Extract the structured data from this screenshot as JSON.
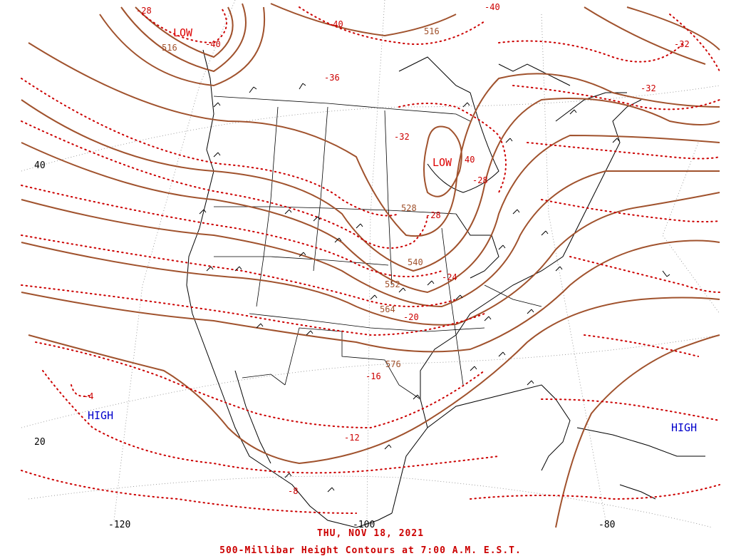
{
  "map": {
    "date": "THU, NOV 18, 2021",
    "title": "500-Millibar Height Contours at 7:00 A.M. E.S.T.",
    "colors": {
      "height_contour": "#a0522d",
      "temperature_contour": "#cc0000",
      "label_low": "#dd0000",
      "label_high": "#0000cc",
      "coast": "#000000",
      "grid": "#777777"
    },
    "pressure_centers": [
      {
        "type": "LOW",
        "color": "#dd0000"
      },
      {
        "type": "LOW",
        "color": "#dd0000"
      },
      {
        "type": "HIGH",
        "color": "#0000cc"
      },
      {
        "type": "HIGH",
        "color": "#0000cc"
      }
    ],
    "height_labels": [
      "516",
      "516",
      "528",
      "540",
      "552",
      "564",
      "576"
    ],
    "temperature_labels": [
      "-28",
      "-40",
      "-40",
      "-40",
      "-36",
      "-32",
      "-32",
      "-32",
      "-28",
      "-28",
      "-24",
      "-20",
      "-16",
      "-12",
      "-8",
      "-4"
    ],
    "temperature_low_center_label": "40",
    "lat_labels": [
      "40",
      "20"
    ],
    "lon_labels": [
      "-120",
      "-100",
      "-80"
    ]
  }
}
